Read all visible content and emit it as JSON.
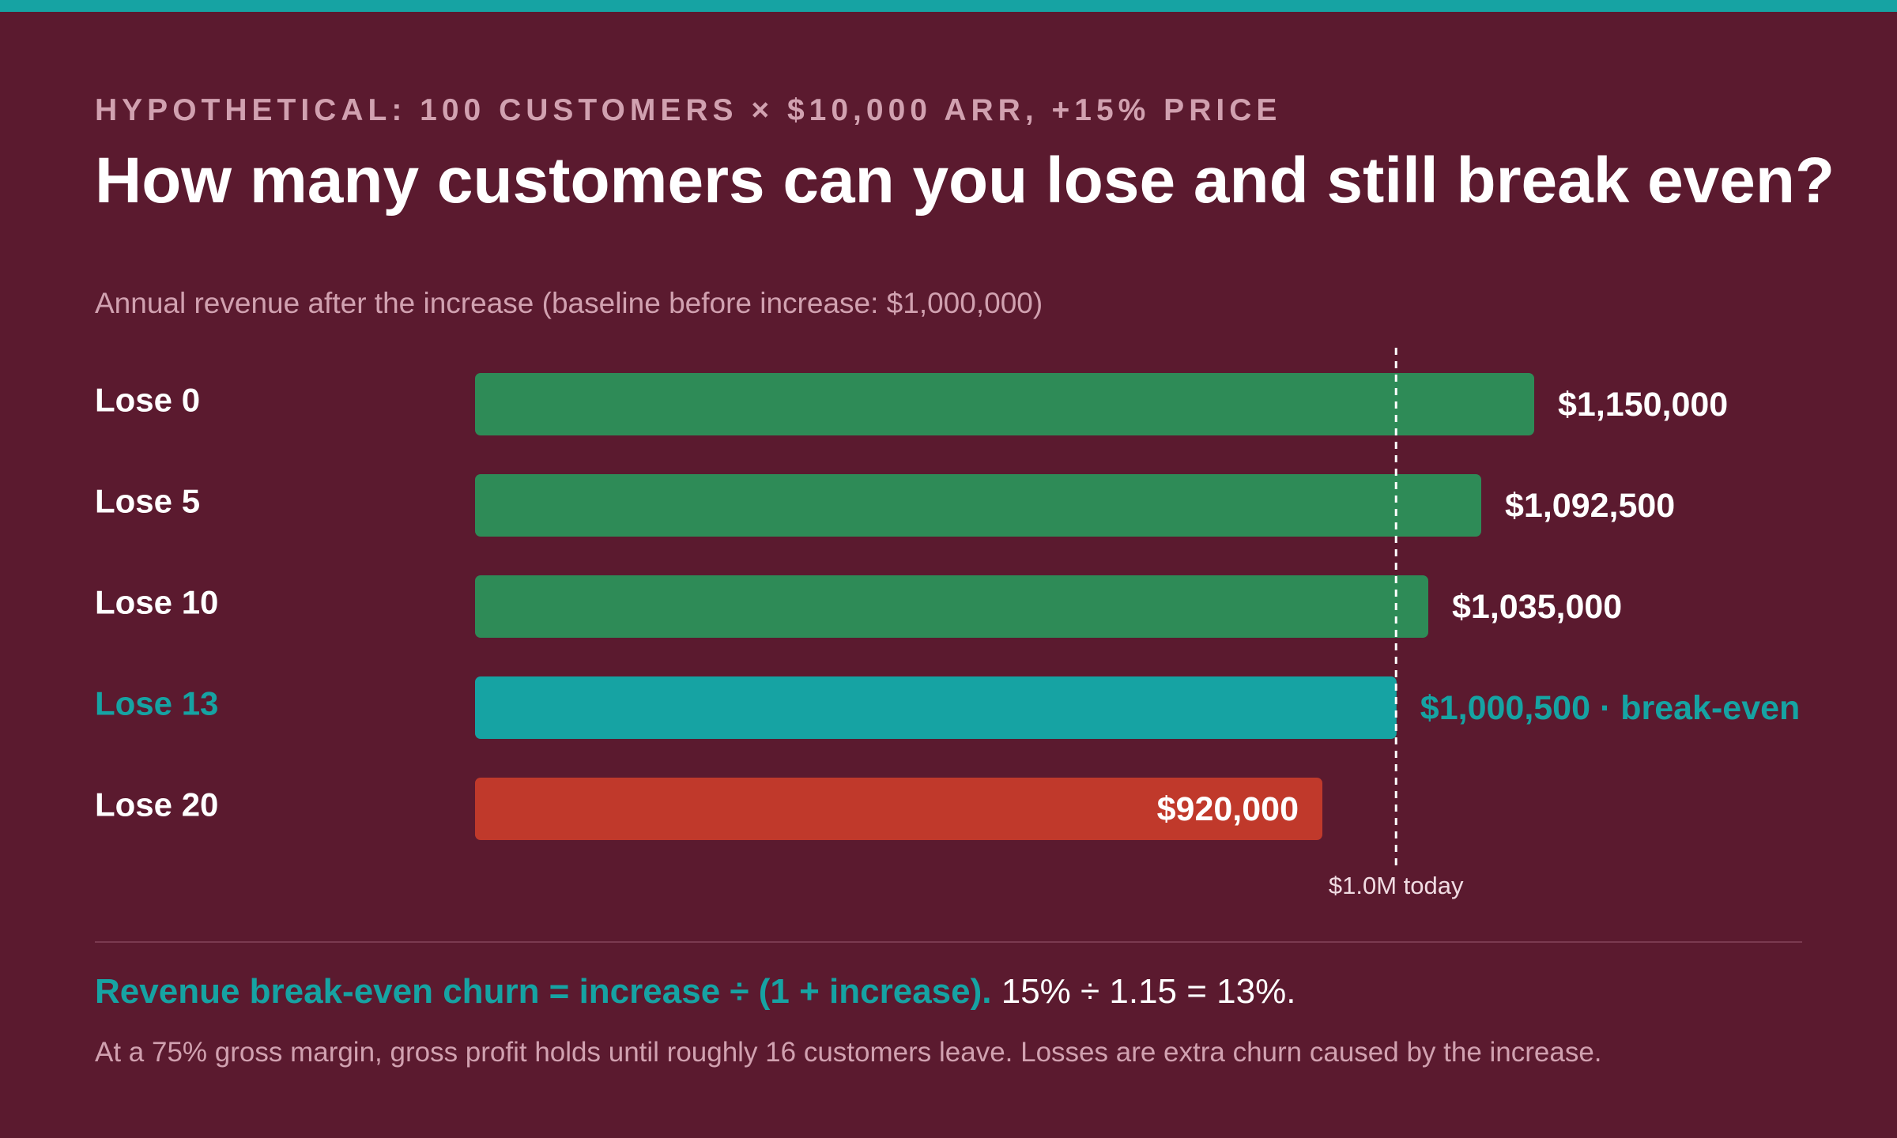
{
  "eyebrow": "HYPOTHETICAL: 100 CUSTOMERS × $10,000 ARR, +15% PRICE",
  "title": "How many customers can you lose and still break even?",
  "subtitle": "Annual revenue after the increase (baseline before increase: $1,000,000)",
  "formula": {
    "lead": "Revenue break-even churn = increase ÷ (1 + increase).",
    "calc": "15% ÷ 1.15 = 13%."
  },
  "footnote": "At a 75% gross margin, gross profit holds until roughly 16 customers leave. Losses are extra churn caused by the increase.",
  "colors": {
    "background": "#5b1a2f",
    "accent": "#16a3a3",
    "positive": "#2e8b57",
    "negative": "#c0392b",
    "muted": "#d1a1b0"
  },
  "chart_data": {
    "type": "bar",
    "orientation": "horizontal",
    "title": "How many customers can you lose and still break even?",
    "subtitle": "Annual revenue after the increase (baseline before increase: $1,000,000)",
    "categories": [
      "Lose 0",
      "Lose 5",
      "Lose 10",
      "Lose 13",
      "Lose 20"
    ],
    "values": [
      1150000,
      1092500,
      1035000,
      1000500,
      920000
    ],
    "value_labels": [
      "$1,150,000",
      "$1,092,500",
      "$1,035,000",
      "$1,000,500 · break-even",
      "$920,000"
    ],
    "status": [
      "above",
      "above",
      "above",
      "break-even",
      "below"
    ],
    "reference_line": {
      "value": 1000000,
      "label": "$1.0M today",
      "style": "dashed"
    },
    "xlim": [
      0,
      1150000
    ],
    "grid": false,
    "legend": "none"
  }
}
